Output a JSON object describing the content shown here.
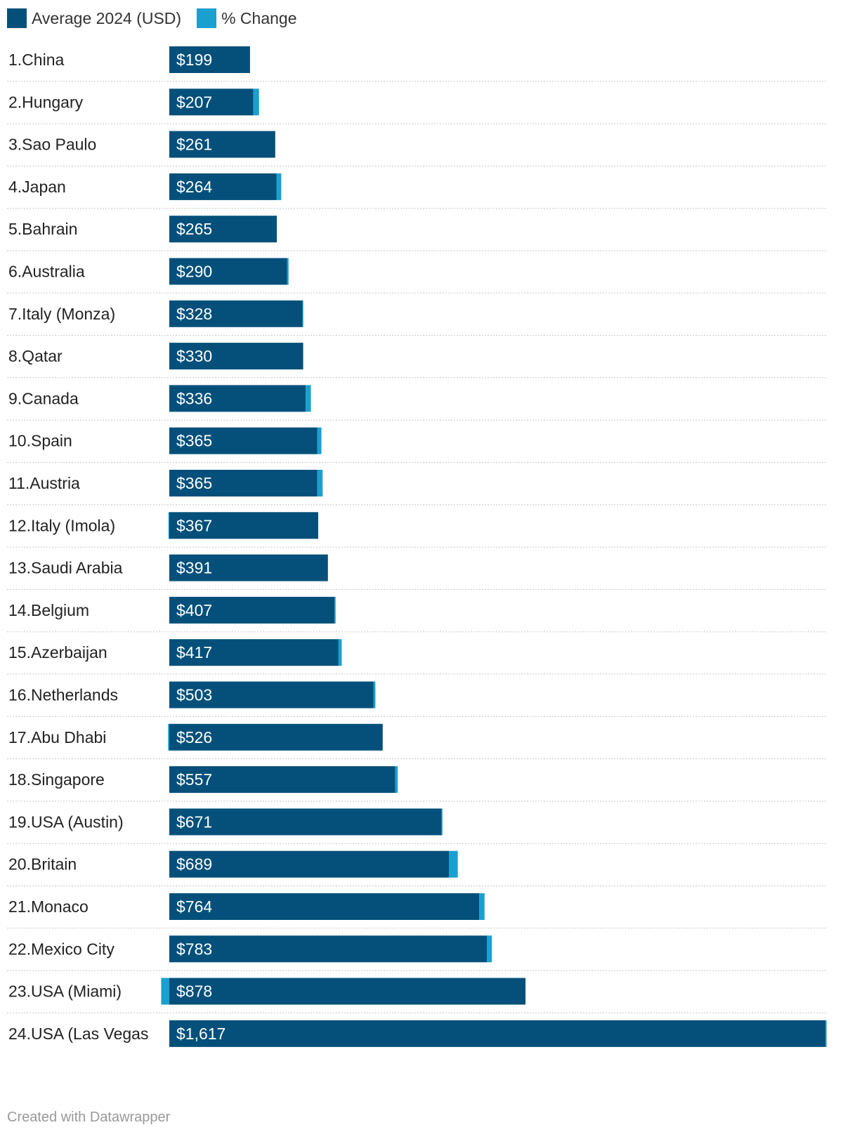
{
  "colors": {
    "primary": "#04507a",
    "accent": "#1aa0cf",
    "divider": "#c8c8c8",
    "label_text": "#222222",
    "value_text": "#ffffff"
  },
  "legend": {
    "series1": "Average 2024 (USD)",
    "series2": "% Change"
  },
  "footer": {
    "credit": "Created with Datawrapper"
  },
  "chart_data": {
    "type": "bar",
    "orientation": "horizontal",
    "stacked": true,
    "title": "",
    "xlabel": "",
    "ylabel": "",
    "xlim": [
      0,
      1617
    ],
    "categories": [
      "1.China",
      "2.Hungary",
      "3.Sao Paulo",
      "4.Japan",
      "5.Bahrain",
      "6.Australia",
      "7.Italy (Monza)",
      "8.Qatar",
      "9.Canada",
      "10.Spain",
      "11.Austria",
      "12.Italy (Imola)",
      "13.Saudi Arabia",
      "14.Belgium",
      "15.Azerbaijan",
      "16.Netherlands",
      "17.Abu Dhabi",
      "18.Singapore",
      "19.USA (Austin)",
      "20.Britain",
      "21.Monaco",
      "22.Mexico City",
      "23.USA (Miami)",
      "24.USA (Las Vegas"
    ],
    "series": [
      {
        "name": "Average 2024 (USD)",
        "values": [
          199,
          207,
          261,
          264,
          265,
          290,
          328,
          330,
          336,
          365,
          365,
          367,
          391,
          407,
          417,
          503,
          526,
          557,
          671,
          689,
          764,
          783,
          878,
          1617
        ],
        "labels": [
          "$199",
          "$207",
          "$261",
          "$264",
          "$265",
          "$290",
          "$328",
          "$330",
          "$336",
          "$365",
          "$365",
          "$367",
          "$391",
          "$407",
          "$417",
          "$503",
          "$526",
          "$557",
          "$671",
          "$689",
          "$764",
          "$783",
          "$878",
          "$1,617"
        ]
      },
      {
        "name": "% Change",
        "values": [
          0,
          14,
          0,
          12,
          0,
          4,
          2,
          0,
          13,
          10,
          13,
          -2,
          0,
          3,
          8,
          5,
          -3,
          6,
          2,
          22,
          13,
          12,
          -20,
          3
        ]
      }
    ]
  }
}
